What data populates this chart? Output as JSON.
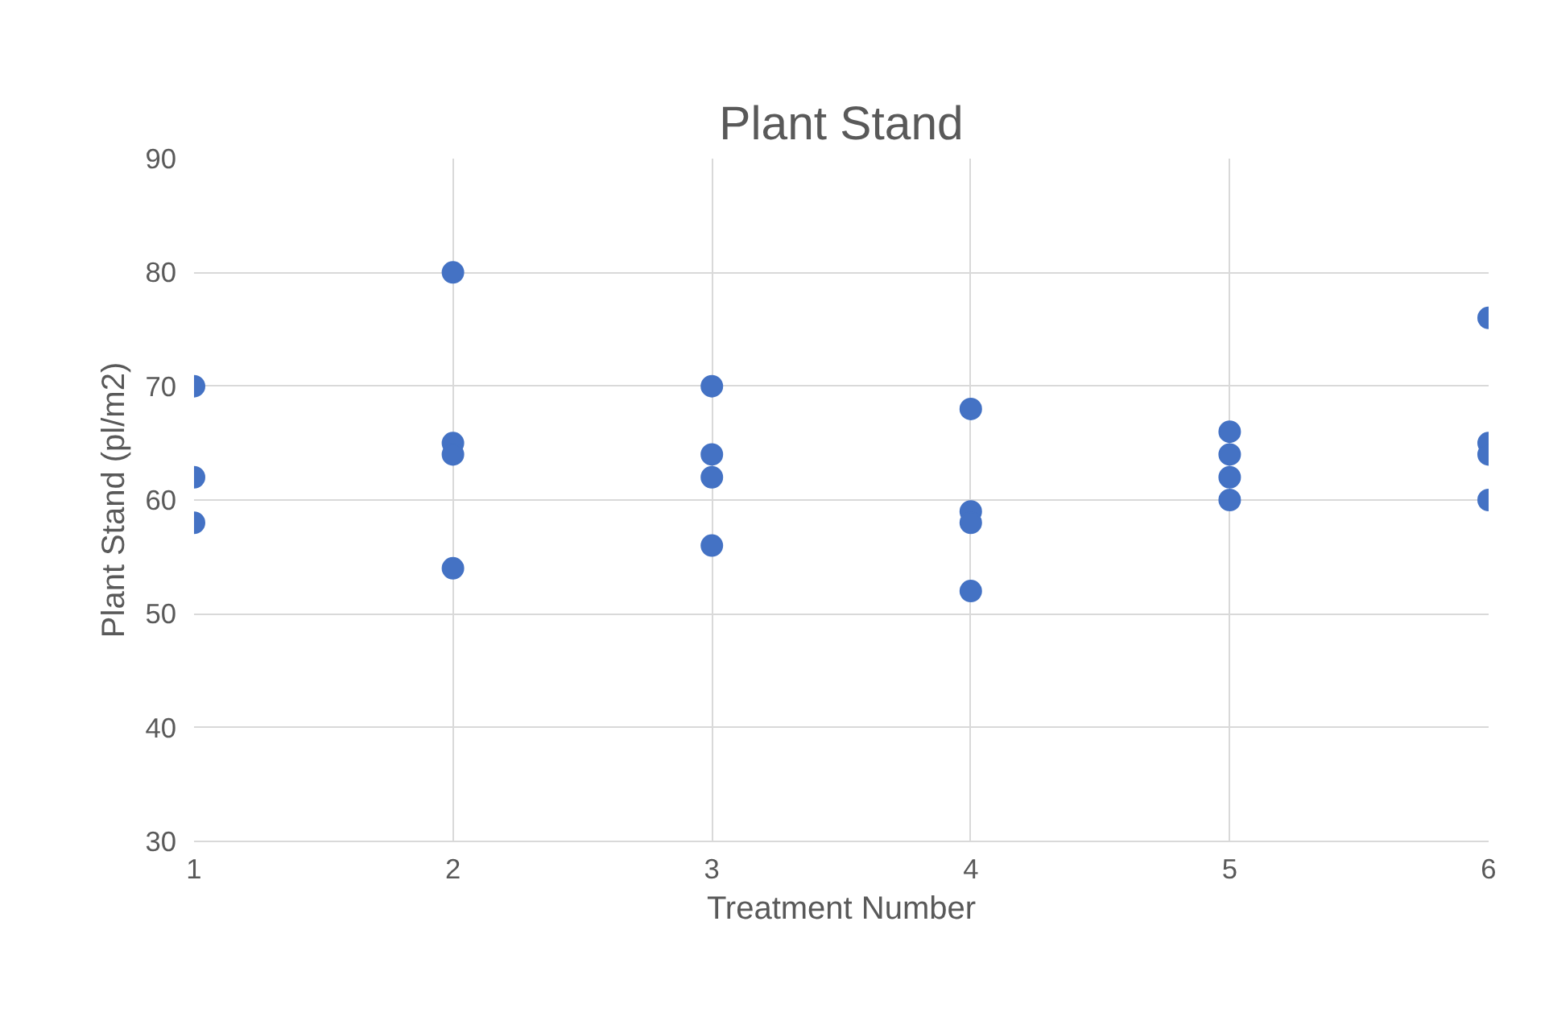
{
  "chart_data": {
    "type": "scatter",
    "title": "Plant Stand",
    "xlabel": "Treatment Number",
    "ylabel": "Plant Stand (pl/m2)",
    "x": [
      1,
      1,
      1,
      2,
      2,
      2,
      2,
      3,
      3,
      3,
      3,
      4,
      4,
      4,
      4,
      5,
      5,
      5,
      5,
      6,
      6,
      6,
      6
    ],
    "values": [
      70,
      62,
      58,
      80,
      65,
      64,
      54,
      70,
      64,
      62,
      56,
      68,
      59,
      58,
      52,
      66,
      64,
      62,
      60,
      76,
      65,
      64,
      60
    ],
    "color": "#4472c4",
    "marker": "circle",
    "xlim": [
      1,
      6
    ],
    "ylim": [
      30,
      90
    ],
    "xticks": [
      1,
      2,
      3,
      4,
      5,
      6
    ],
    "yticks": [
      30,
      40,
      50,
      60,
      70,
      80,
      90
    ],
    "grid": true
  }
}
